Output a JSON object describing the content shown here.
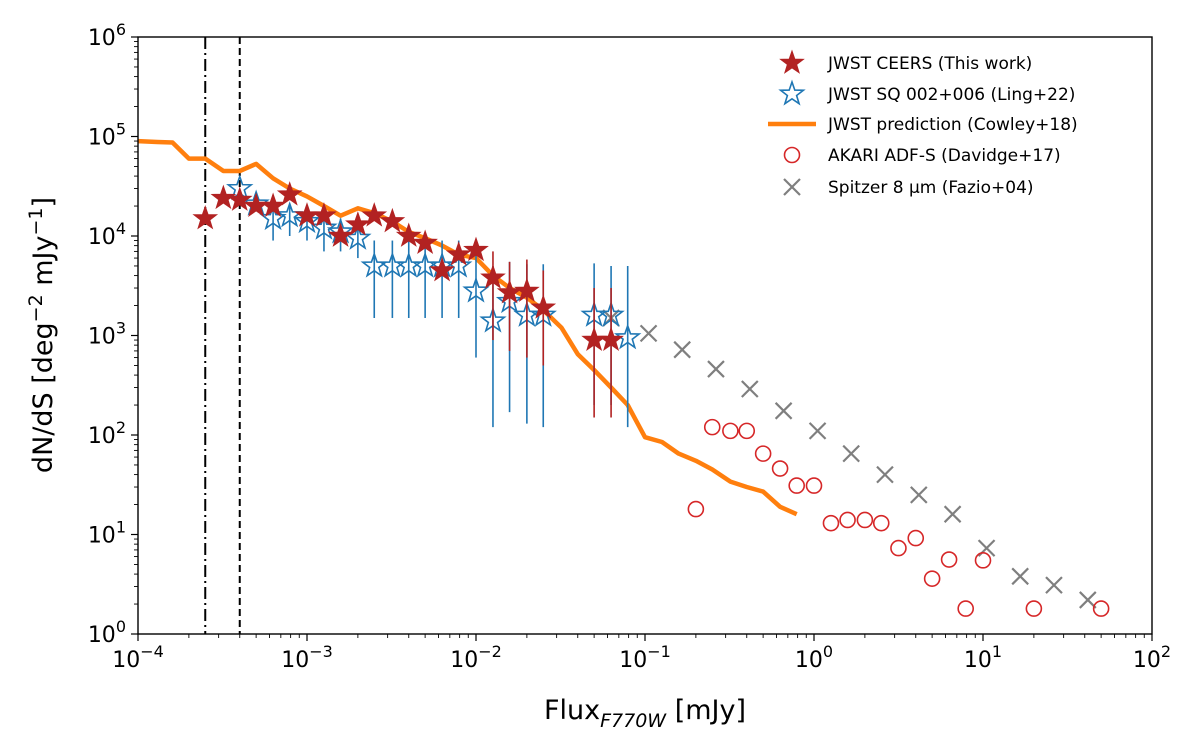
{
  "chart_data": {
    "type": "scatter",
    "title": "",
    "xlabel": "Flux",
    "xlabel_sub": "F770W",
    "xlabel_unit": "[mJy]",
    "ylabel": "dN/dS [deg",
    "ylabel_exp1": "−2",
    "ylabel_mid": " mJy",
    "ylabel_exp2": "−1",
    "ylabel_end": "]",
    "xscale": "log",
    "yscale": "log",
    "xlim_exp": [
      -4,
      2
    ],
    "ylim_exp": [
      0,
      6
    ],
    "x_ticks": [
      {
        "base": "10",
        "exp": "−4",
        "e": -4
      },
      {
        "base": "10",
        "exp": "−3",
        "e": -3
      },
      {
        "base": "10",
        "exp": "−2",
        "e": -2
      },
      {
        "base": "10",
        "exp": "−1",
        "e": -1
      },
      {
        "base": "10",
        "exp": "0",
        "e": 0
      },
      {
        "base": "10",
        "exp": "1",
        "e": 1
      },
      {
        "base": "10",
        "exp": "2",
        "e": 2
      }
    ],
    "y_ticks": [
      {
        "base": "10",
        "exp": "0",
        "e": 0
      },
      {
        "base": "10",
        "exp": "1",
        "e": 1
      },
      {
        "base": "10",
        "exp": "2",
        "e": 2
      },
      {
        "base": "10",
        "exp": "3",
        "e": 3
      },
      {
        "base": "10",
        "exp": "4",
        "e": 4
      },
      {
        "base": "10",
        "exp": "5",
        "e": 5
      },
      {
        "base": "10",
        "exp": "6",
        "e": 6
      }
    ],
    "vlines": [
      {
        "x": 0.00025,
        "style": "dashdot",
        "color": "#000000"
      },
      {
        "x": 0.0004,
        "style": "dashed",
        "color": "#000000"
      }
    ],
    "legend_position": "top-right",
    "series": [
      {
        "name": "JWST CEERS (This work)",
        "marker": "filled-star",
        "color": "#b22222",
        "points": [
          [
            0.00025,
            15000
          ],
          [
            0.00032,
            24000
          ],
          [
            0.0004,
            23000
          ],
          [
            0.0005,
            20000
          ],
          [
            0.00063,
            20000
          ],
          [
            0.00079,
            26000
          ],
          [
            0.001,
            16000
          ],
          [
            0.00126,
            16000
          ],
          [
            0.00158,
            10000
          ],
          [
            0.002,
            13000
          ],
          [
            0.0025,
            16000
          ],
          [
            0.0032,
            14000
          ],
          [
            0.004,
            10000
          ],
          [
            0.005,
            8500
          ],
          [
            0.0063,
            4500
          ],
          [
            0.0079,
            6500
          ],
          [
            0.01,
            7200
          ],
          [
            0.0126,
            3800
          ],
          [
            0.0158,
            2700
          ],
          [
            0.02,
            2800
          ],
          [
            0.025,
            1900
          ],
          [
            0.05,
            900
          ],
          [
            0.063,
            900
          ]
        ],
        "errors": [
          [
            0.0126,
            900,
            7000
          ],
          [
            0.0158,
            700,
            5500
          ],
          [
            0.02,
            600,
            5800
          ],
          [
            0.025,
            500,
            4500
          ],
          [
            0.05,
            150,
            3000
          ],
          [
            0.063,
            150,
            3000
          ]
        ]
      },
      {
        "name": "JWST SQ 002+006 (Ling+22)",
        "marker": "open-star",
        "color": "#1f77b4",
        "points": [
          [
            0.0004,
            30000
          ],
          [
            0.0005,
            21000
          ],
          [
            0.00063,
            15000
          ],
          [
            0.00079,
            16000
          ],
          [
            0.001,
            14000
          ],
          [
            0.00126,
            12000
          ],
          [
            0.00158,
            11000
          ],
          [
            0.002,
            9500
          ],
          [
            0.0025,
            5000
          ],
          [
            0.0032,
            5000
          ],
          [
            0.004,
            5000
          ],
          [
            0.005,
            5000
          ],
          [
            0.0063,
            5000
          ],
          [
            0.0079,
            5000
          ],
          [
            0.01,
            2800
          ],
          [
            0.0126,
            1400
          ],
          [
            0.0158,
            2200
          ],
          [
            0.02,
            1600
          ],
          [
            0.025,
            1600
          ],
          [
            0.05,
            1600
          ],
          [
            0.063,
            1600
          ],
          [
            0.079,
            950
          ]
        ],
        "errors": [
          [
            0.00063,
            9000,
            19000
          ],
          [
            0.00079,
            10000,
            20000
          ],
          [
            0.001,
            9000,
            18000
          ],
          [
            0.00126,
            7000,
            16000
          ],
          [
            0.00158,
            7000,
            15000
          ],
          [
            0.002,
            6000,
            13000
          ],
          [
            0.0025,
            1500,
            9000
          ],
          [
            0.0032,
            1500,
            9000
          ],
          [
            0.004,
            1500,
            9000
          ],
          [
            0.005,
            1500,
            9000
          ],
          [
            0.0063,
            1500,
            9000
          ],
          [
            0.0079,
            1500,
            9000
          ],
          [
            0.01,
            600,
            7000
          ],
          [
            0.0126,
            120,
            5000
          ],
          [
            0.0158,
            170,
            5500
          ],
          [
            0.02,
            130,
            5200
          ],
          [
            0.025,
            120,
            5200
          ],
          [
            0.05,
            200,
            5300
          ],
          [
            0.063,
            200,
            5000
          ],
          [
            0.079,
            120,
            5000
          ]
        ]
      },
      {
        "name": "JWST prediction (Cowley+18)",
        "marker": "line",
        "color": "#ff7f0e",
        "points": [
          [
            0.0001,
            90000
          ],
          [
            0.00013,
            88000
          ],
          [
            0.00016,
            87000
          ],
          [
            0.0002,
            60000
          ],
          [
            0.00025,
            60000
          ],
          [
            0.00032,
            45000
          ],
          [
            0.0004,
            45000
          ],
          [
            0.0005,
            53000
          ],
          [
            0.00063,
            38000
          ],
          [
            0.00079,
            30000
          ],
          [
            0.001,
            25000
          ],
          [
            0.00126,
            20000
          ],
          [
            0.00158,
            16000
          ],
          [
            0.002,
            19000
          ],
          [
            0.0025,
            17000
          ],
          [
            0.0032,
            14000
          ],
          [
            0.004,
            11000
          ],
          [
            0.005,
            9500
          ],
          [
            0.0063,
            8000
          ],
          [
            0.0079,
            6500
          ],
          [
            0.01,
            6000
          ],
          [
            0.0126,
            4000
          ],
          [
            0.0158,
            3000
          ],
          [
            0.02,
            2400
          ],
          [
            0.025,
            1800
          ],
          [
            0.032,
            1200
          ],
          [
            0.04,
            650
          ],
          [
            0.05,
            450
          ],
          [
            0.063,
            300
          ],
          [
            0.079,
            200
          ],
          [
            0.1,
            95
          ],
          [
            0.126,
            85
          ],
          [
            0.158,
            65
          ],
          [
            0.2,
            55
          ],
          [
            0.25,
            45
          ],
          [
            0.32,
            34
          ],
          [
            0.4,
            30
          ],
          [
            0.5,
            27
          ],
          [
            0.63,
            19
          ],
          [
            0.79,
            16
          ]
        ]
      },
      {
        "name": "AKARI ADF-S (Davidge+17)",
        "marker": "open-circle",
        "color": "#d62728",
        "points": [
          [
            0.2,
            18
          ],
          [
            0.25,
            120
          ],
          [
            0.32,
            110
          ],
          [
            0.4,
            110
          ],
          [
            0.5,
            65
          ],
          [
            0.63,
            46
          ],
          [
            0.79,
            31
          ],
          [
            1.0,
            31
          ],
          [
            1.26,
            13
          ],
          [
            1.58,
            14
          ],
          [
            2.0,
            14
          ],
          [
            2.5,
            13
          ],
          [
            3.16,
            7.3
          ],
          [
            4.0,
            9.2
          ],
          [
            5.0,
            3.6
          ],
          [
            6.3,
            5.6
          ],
          [
            7.9,
            1.8
          ],
          [
            10,
            5.5
          ],
          [
            20,
            1.8
          ],
          [
            50,
            1.8
          ]
        ]
      },
      {
        "name": "Spitzer 8 μm (Fazio+04)",
        "marker": "x",
        "color": "#7f7f7f",
        "points": [
          [
            0.063,
            1500
          ],
          [
            0.105,
            1050
          ],
          [
            0.166,
            720
          ],
          [
            0.263,
            460
          ],
          [
            0.417,
            290
          ],
          [
            0.661,
            175
          ],
          [
            1.05,
            110
          ],
          [
            1.66,
            65
          ],
          [
            2.63,
            40
          ],
          [
            4.17,
            25
          ],
          [
            6.61,
            16
          ],
          [
            10.5,
            7.3
          ],
          [
            16.6,
            3.8
          ],
          [
            26.3,
            3.1
          ],
          [
            41.7,
            2.2
          ]
        ]
      }
    ]
  }
}
